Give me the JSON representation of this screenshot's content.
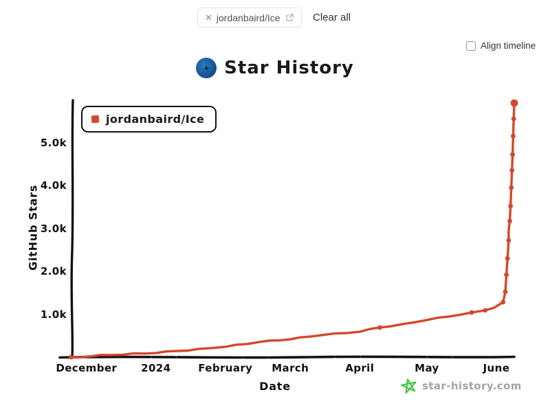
{
  "header": {
    "repo_chip": {
      "label": "jordanbaird/Ice",
      "close_glyph": "✕"
    },
    "clear_all_label": "Clear all",
    "align_timeline_label": "Align timeline",
    "align_timeline_checked": false
  },
  "watermark": {
    "text": "star-history.com",
    "star_color": "#3bc43b"
  },
  "logo": {
    "star_glyph": "✦"
  },
  "colors": {
    "series_red": "#d5472b",
    "axis_black": "#111111"
  },
  "chart_data": {
    "type": "line",
    "title": "Star History",
    "xlabel": "Date",
    "ylabel": "GitHub Stars",
    "ylim": [
      0,
      6000
    ],
    "x_domain": [
      "2023-11-24",
      "2024-06-09"
    ],
    "grid": false,
    "legend_position": "top-left",
    "x_ticks": [
      {
        "label": "December",
        "date": "2023-12-01"
      },
      {
        "label": "2024",
        "date": "2024-01-01"
      },
      {
        "label": "February",
        "date": "2024-02-01"
      },
      {
        "label": "March",
        "date": "2024-03-01"
      },
      {
        "label": "April",
        "date": "2024-04-01"
      },
      {
        "label": "May",
        "date": "2024-05-01"
      },
      {
        "label": "June",
        "date": "2024-06-01"
      }
    ],
    "y_ticks": [
      {
        "label": "1.0k",
        "value": 1000
      },
      {
        "label": "2.0k",
        "value": 2000
      },
      {
        "label": "3.0k",
        "value": 3000
      },
      {
        "label": "4.0k",
        "value": 4000
      },
      {
        "label": "5.0k",
        "value": 5000
      }
    ],
    "series": [
      {
        "name": "jordanbaird/Ice",
        "color": "#d5472b",
        "points": [
          {
            "date": "2023-11-24",
            "stars": 0,
            "dot": "small"
          },
          {
            "date": "2023-12-12",
            "stars": 50
          },
          {
            "date": "2024-01-01",
            "stars": 95
          },
          {
            "date": "2024-01-20",
            "stars": 190
          },
          {
            "date": "2024-02-01",
            "stars": 240
          },
          {
            "date": "2024-02-16",
            "stars": 350
          },
          {
            "date": "2024-03-01",
            "stars": 415
          },
          {
            "date": "2024-03-15",
            "stars": 510
          },
          {
            "date": "2024-04-01",
            "stars": 590
          },
          {
            "date": "2024-04-10",
            "stars": 690,
            "dot": "small"
          },
          {
            "date": "2024-04-20",
            "stars": 770
          },
          {
            "date": "2024-05-01",
            "stars": 865
          },
          {
            "date": "2024-05-11",
            "stars": 945
          },
          {
            "date": "2024-05-21",
            "stars": 1040,
            "dot": "small"
          },
          {
            "date": "2024-05-27",
            "stars": 1090,
            "dot": "small"
          },
          {
            "date": "2024-05-31",
            "stars": 1150
          },
          {
            "date": "2024-06-04T00:00:00",
            "stars": 1280,
            "dot": "small"
          },
          {
            "date": "2024-06-05T00:00:00",
            "stars": 1520,
            "dot": "small"
          },
          {
            "date": "2024-06-05T12:00:00",
            "stars": 1920,
            "dot": "small"
          },
          {
            "date": "2024-06-06T00:00:00",
            "stars": 2300,
            "dot": "small"
          },
          {
            "date": "2024-06-06T12:00:00",
            "stars": 2720,
            "dot": "small"
          },
          {
            "date": "2024-06-07T00:00:00",
            "stars": 3170,
            "dot": "small"
          },
          {
            "date": "2024-06-07T08:00:00",
            "stars": 3520,
            "dot": "small"
          },
          {
            "date": "2024-06-07T16:00:00",
            "stars": 3950,
            "dot": "small"
          },
          {
            "date": "2024-06-08T00:00:00",
            "stars": 4350,
            "dot": "small"
          },
          {
            "date": "2024-06-08T06:00:00",
            "stars": 4720,
            "dot": "small"
          },
          {
            "date": "2024-06-08T12:00:00",
            "stars": 5150,
            "dot": "small"
          },
          {
            "date": "2024-06-08T18:00:00",
            "stars": 5550,
            "dot": "small"
          },
          {
            "date": "2024-06-09T00:00:00",
            "stars": 5920,
            "dot": "big"
          }
        ]
      }
    ]
  }
}
